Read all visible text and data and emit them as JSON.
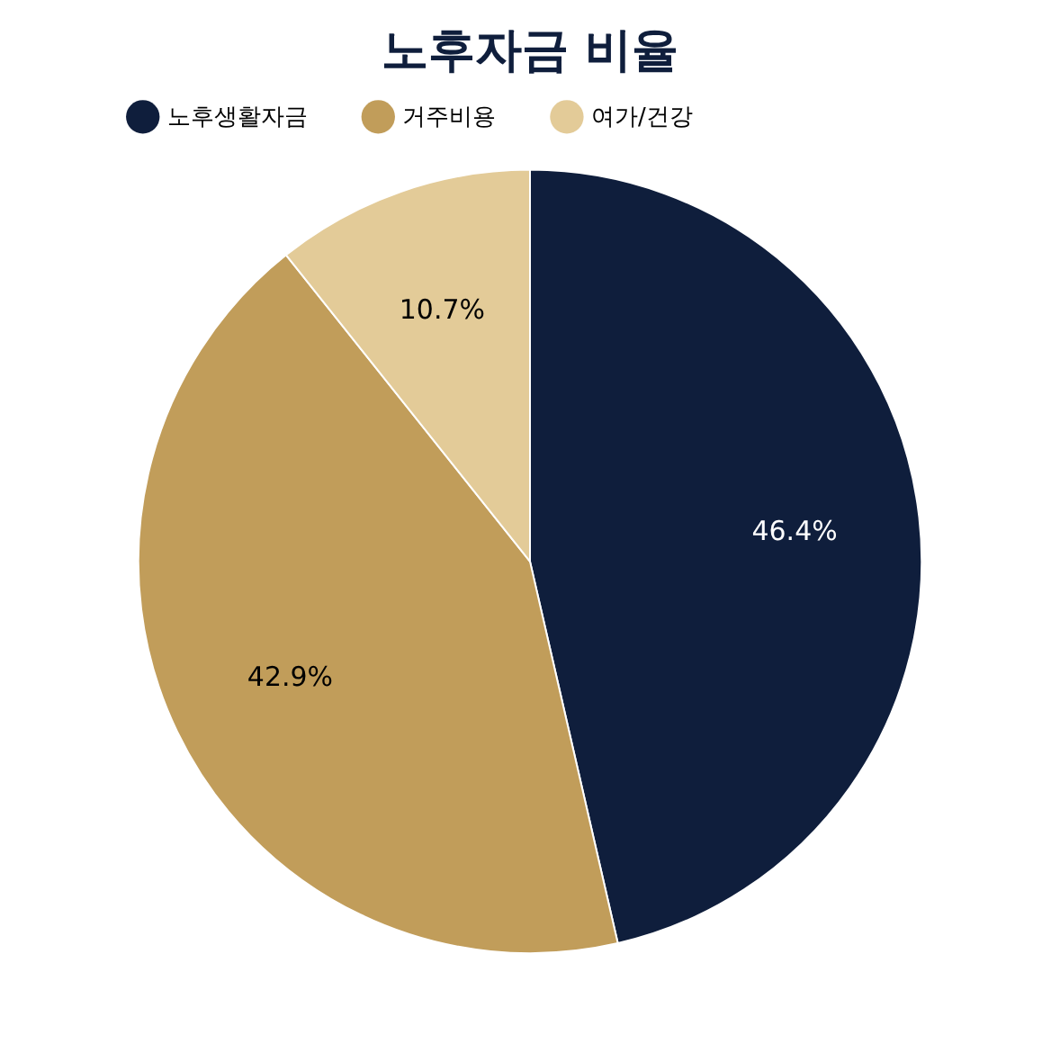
{
  "chart_data": {
    "type": "pie",
    "title": "노후자금 비율",
    "categories": [
      "노후생활자금",
      "거주비용",
      "여가/건강"
    ],
    "values": [
      46.4,
      42.9,
      10.7
    ],
    "colors": [
      "#0f1e3c",
      "#c19d5a",
      "#e3cb98"
    ],
    "value_labels": [
      "46.4%",
      "42.9%",
      "10.7%"
    ],
    "legend": "top"
  }
}
